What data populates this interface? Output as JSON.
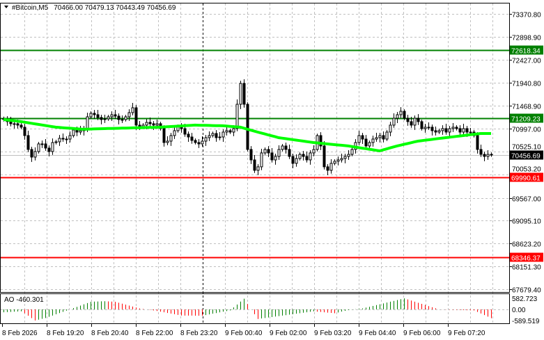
{
  "header": {
    "symbol": "#Bitcoin,M5",
    "ohlc": "70466.00 70479.13 70443.49 70456.69",
    "menu_icon": "triangle-down-icon"
  },
  "colors": {
    "bull_body": "#ffffff",
    "bear_body": "#000000",
    "ma": "#00ff00",
    "resistance": "#008000",
    "support": "#ff0000",
    "ao_up": "#008000",
    "ao_down": "#ff0000",
    "grid": "#c0c0c0"
  },
  "price_axis": {
    "ticks": [
      "73370.80",
      "72898.90",
      "72427.00",
      "71940.80",
      "71468.90",
      "70997.00",
      "70525.10",
      "70053.20",
      "69567.00",
      "69095.10",
      "68623.20",
      "68151.30",
      "67679.40"
    ],
    "ylim": [
      67679.4,
      73370.8
    ]
  },
  "levels": [
    {
      "label": "72618.34",
      "value": 72618.34,
      "type": "resistance"
    },
    {
      "label": "71209.23",
      "value": 71209.23,
      "type": "resistance"
    },
    {
      "label": "69990.61",
      "value": 69990.61,
      "type": "support"
    },
    {
      "label": "68346.37",
      "value": 68346.37,
      "type": "support"
    }
  ],
  "current_price": {
    "label": "70456.69",
    "value": 70456.69
  },
  "time_axis": [
    "8 Feb 2026",
    "8 Feb 19:20",
    "8 Feb 20:40",
    "8 Feb 22:00",
    "8 Feb 23:20",
    "9 Feb 00:40",
    "9 Feb 02:00",
    "9 Feb 03:20",
    "9 Feb 04:40",
    "9 Feb 06:00",
    "9 Feb 07:20"
  ],
  "closes": [
    71187,
    71144,
    71101,
    71101,
    71072,
    71029,
    70856,
    70569,
    70411,
    70526,
    70684,
    70684,
    70597,
    70526,
    70712,
    70727,
    70799,
    70784,
    70784,
    70856,
    70971,
    70928,
    70957,
    71000,
    71244,
    71316,
    71287,
    71230,
    71187,
    71201,
    71244,
    71287,
    71258,
    71187,
    71187,
    71244,
    71330,
    71431,
    71072,
    71043,
    71072,
    71129,
    71101,
    71072,
    71101,
    71000,
    70712,
    70741,
    70856,
    70957,
    71043,
    71000,
    70885,
    70827,
    70756,
    70712,
    70684,
    70741,
    70813,
    70856,
    70899,
    70813,
    70827,
    70928,
    70957,
    70928,
    71000,
    71503,
    71934,
    71503,
    70569,
    70353,
    70138,
    70210,
    70497,
    70569,
    70497,
    70353,
    70425,
    70569,
    70641,
    70569,
    70425,
    70282,
    70382,
    70468,
    70425,
    70353,
    70497,
    70569,
    70856,
    70641,
    70210,
    70138,
    70282,
    70325,
    70353,
    70382,
    70425,
    70468,
    70569,
    70712,
    70856,
    70784,
    70641,
    70712,
    70784,
    70813,
    70856,
    70784,
    70928,
    71072,
    71215,
    71287,
    71359,
    71215,
    71144,
    71072,
    71215,
    71144,
    71000,
    71029,
    71029,
    70957,
    70928,
    70957,
    71000,
    70928,
    71000,
    71029,
    71000,
    70928,
    71000,
    70928,
    70928,
    70856,
    70569,
    70468,
    70425,
    70468,
    70456.69
  ],
  "moving_average": [
    [
      0,
      71187
    ],
    [
      5,
      71144
    ],
    [
      15,
      71029
    ],
    [
      23,
      70986
    ],
    [
      29,
      71000
    ],
    [
      45,
      71029
    ],
    [
      55,
      71072
    ],
    [
      63,
      71058
    ],
    [
      68,
      71029
    ],
    [
      73,
      70928
    ],
    [
      79,
      70813
    ],
    [
      89,
      70712
    ],
    [
      99,
      70641
    ],
    [
      108,
      70540
    ],
    [
      113,
      70641
    ],
    [
      119,
      70741
    ],
    [
      127,
      70813
    ],
    [
      137,
      70899
    ],
    [
      140,
      70899
    ]
  ],
  "ao": {
    "label": "AO -460.301",
    "ticks": [
      "582.723",
      "0.00",
      "-589.519"
    ],
    "ylim": [
      -589.519,
      582.723
    ],
    "keypoints": [
      [
        0,
        -150
      ],
      [
        5,
        -100
      ],
      [
        6,
        -200
      ],
      [
        9,
        -580
      ],
      [
        12,
        -450
      ],
      [
        19,
        0
      ],
      [
        25,
        400
      ],
      [
        29,
        430
      ],
      [
        32,
        400
      ],
      [
        39,
        50
      ],
      [
        43,
        -50
      ],
      [
        51,
        -320
      ],
      [
        57,
        -330
      ],
      [
        65,
        -50
      ],
      [
        69,
        560
      ],
      [
        71,
        0
      ],
      [
        73,
        -500
      ],
      [
        89,
        -100
      ],
      [
        95,
        -200
      ],
      [
        99,
        -30
      ],
      [
        103,
        50
      ],
      [
        115,
        580
      ],
      [
        125,
        0
      ],
      [
        135,
        -50
      ],
      [
        140,
        -460
      ]
    ]
  }
}
